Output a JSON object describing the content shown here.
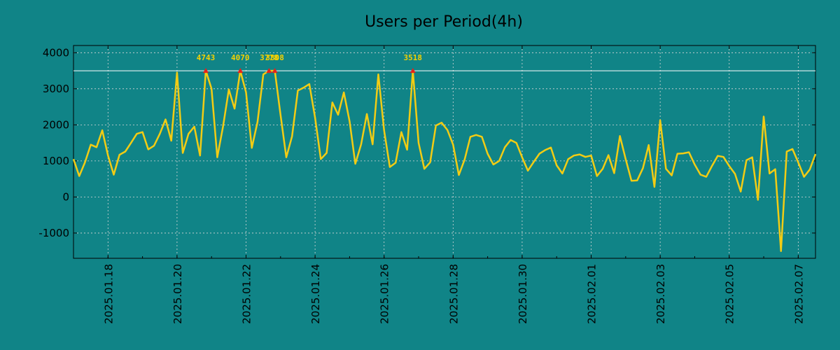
{
  "chart_data": {
    "type": "line",
    "title": "Users per Period(4h)",
    "xlabel": "",
    "ylabel": "",
    "x_start": "2025-01-17T00:00",
    "x_step_hours": 4,
    "x_range": [
      "2025-01-17T00:00",
      "2025-02-07T12:00"
    ],
    "ylim": [
      -1700,
      4200
    ],
    "y_ticks": [
      4000,
      3000,
      2000,
      1000,
      0,
      -1000
    ],
    "x_ticks": [
      "2025.01.18",
      "2025.01.20",
      "2025.01.22",
      "2025.01.24",
      "2025.01.26",
      "2025.01.28",
      "2025.01.30",
      "2025.02.01",
      "2025.02.03",
      "2025.02.05",
      "2025.02.07"
    ],
    "grid": true,
    "threshold": 3500,
    "series": [
      {
        "values": [
          1050,
          580,
          960,
          1450,
          1380,
          1850,
          1150,
          620,
          1170,
          1260,
          1500,
          1750,
          1800,
          1320,
          1420,
          1750,
          2150,
          1560,
          3450,
          1220,
          1750,
          1950,
          1150,
          3500,
          3000,
          1100,
          1950,
          2980,
          2450,
          3500,
          2900,
          1360,
          2080,
          3400,
          3500,
          3500,
          2270,
          1100,
          1680,
          2950,
          3030,
          3130,
          2200,
          1050,
          1220,
          2620,
          2280,
          2900,
          2100,
          920,
          1460,
          2300,
          1460,
          3400,
          1850,
          830,
          950,
          1800,
          1310,
          3500,
          1500,
          780,
          960,
          1980,
          2060,
          1860,
          1450,
          610,
          1040,
          1670,
          1720,
          1670,
          1200,
          900,
          1000,
          1380,
          1580,
          1500,
          1100,
          730,
          970,
          1200,
          1300,
          1370,
          880,
          650,
          1050,
          1150,
          1180,
          1110,
          1150,
          580,
          780,
          1160,
          660,
          1690,
          1050,
          450,
          460,
          800,
          1440,
          280,
          2130,
          780,
          600,
          1200,
          1210,
          1240,
          900,
          620,
          560,
          860,
          1140,
          1110,
          860,
          640,
          150,
          1020,
          1100,
          -80,
          2230,
          650,
          770,
          -1500,
          1260,
          1330,
          960,
          560,
          760,
          1190
        ]
      }
    ],
    "peaks": [
      {
        "x": "2025-01-20T20:00",
        "value": 3500,
        "label": "4743"
      },
      {
        "x": "2025-01-21T20:00",
        "value": 3500,
        "label": "4070"
      },
      {
        "x": "2025-01-22T16:00",
        "value": 3500,
        "label": "3778"
      },
      {
        "x": "2025-01-22T20:00",
        "value": 3500,
        "label": "3808"
      },
      {
        "x": "2025-01-26T20:00",
        "value": 3500,
        "label": "3518"
      }
    ],
    "colors": {
      "background": "#108487",
      "line": "#f2cc14",
      "threshold": "#ffffff",
      "peak_marker": "#e8201a",
      "peak_label": "#f5d000",
      "grid": "#d8d8d8"
    }
  }
}
